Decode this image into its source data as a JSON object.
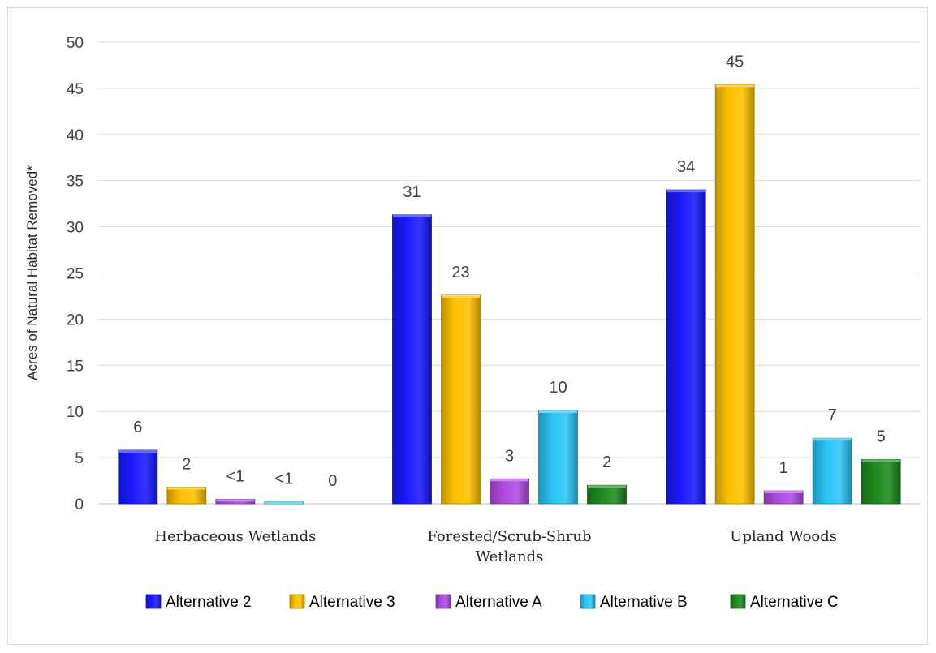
{
  "chart_data": {
    "type": "bar",
    "title": "",
    "xlabel": "",
    "ylabel": "Acres of Natural Habitat Removed*",
    "ylim": [
      0,
      50
    ],
    "yticks": [
      0,
      5,
      10,
      15,
      20,
      25,
      30,
      35,
      40,
      45,
      50
    ],
    "grid": true,
    "legend_position": "bottom",
    "categories": [
      [
        "Herbaceous Wetlands"
      ],
      [
        "Forested/Scrub-Shrub",
        "Wetlands"
      ],
      [
        "Upland Woods"
      ]
    ],
    "series": [
      {
        "name": "Alternative 2",
        "color": "#1a1aff",
        "values": [
          5.8,
          31.3,
          34.0
        ],
        "labels": [
          "6",
          "31",
          "34"
        ]
      },
      {
        "name": "Alternative 3",
        "color": "#ffc000",
        "values": [
          1.8,
          22.6,
          45.4
        ],
        "labels": [
          "2",
          "23",
          "45"
        ]
      },
      {
        "name": "Alternative A",
        "color": "#b04ae0",
        "values": [
          0.5,
          2.7,
          1.4
        ],
        "labels": [
          "<1",
          "3",
          "1"
        ]
      },
      {
        "name": "Alternative B",
        "color": "#29c5f6",
        "values": [
          0.2,
          10.1,
          7.1
        ],
        "labels": [
          "<1",
          "10",
          "7"
        ]
      },
      {
        "name": "Alternative C",
        "color": "#1e8a1e",
        "values": [
          0,
          2.0,
          4.8
        ],
        "labels": [
          "0",
          "2",
          "5"
        ]
      }
    ]
  }
}
